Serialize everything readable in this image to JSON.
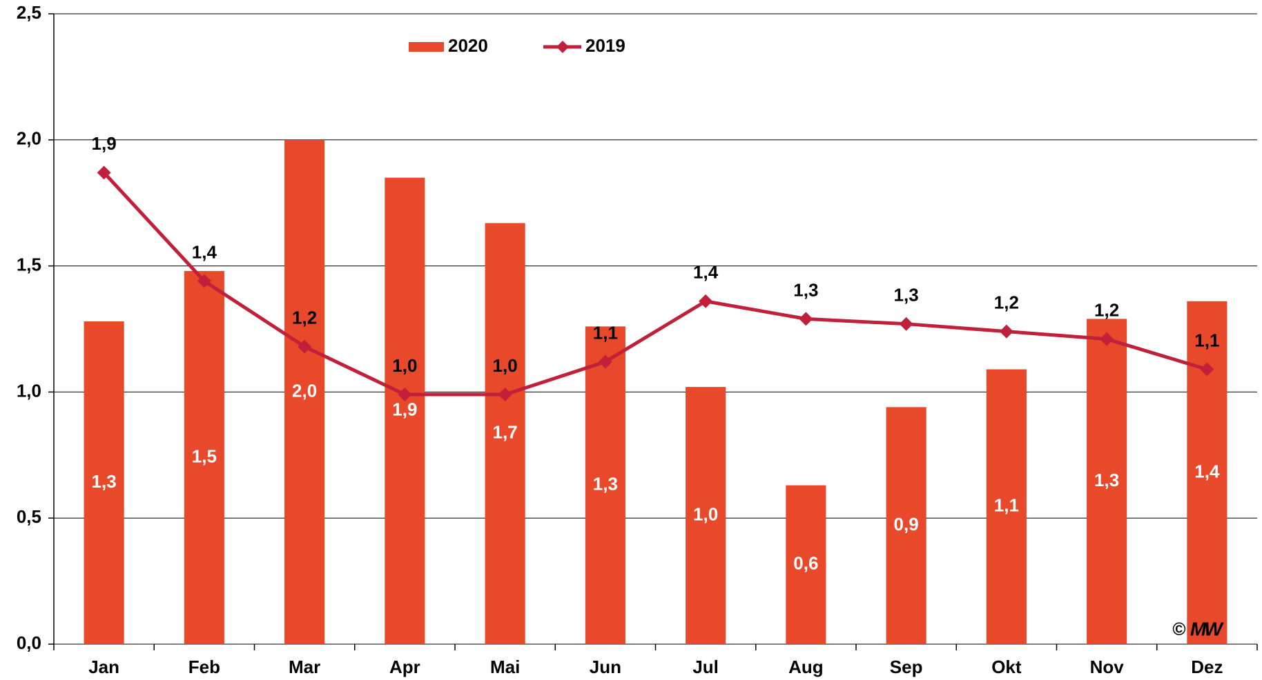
{
  "chart_data": {
    "type": "bar_line",
    "categories": [
      "Jan",
      "Feb",
      "Mar",
      "Apr",
      "Mai",
      "Jun",
      "Jul",
      "Aug",
      "Sep",
      "Okt",
      "Nov",
      "Dez"
    ],
    "series": [
      {
        "name": "2020",
        "type": "bar",
        "color": "#e8492a",
        "values": [
          1.28,
          1.48,
          2.0,
          1.85,
          1.67,
          1.26,
          1.02,
          0.63,
          0.94,
          1.09,
          1.29,
          1.36
        ],
        "value_labels": [
          "1,3",
          "1,5",
          "2,0",
          "1,9",
          "1,7",
          "1,3",
          "1,0",
          "0,6",
          "0,9",
          "1,1",
          "1,3",
          "1,4"
        ]
      },
      {
        "name": "2019",
        "type": "line",
        "color": "#c0203a",
        "values": [
          1.87,
          1.44,
          1.18,
          0.99,
          0.99,
          1.12,
          1.36,
          1.29,
          1.27,
          1.24,
          1.21,
          1.09
        ],
        "value_labels": [
          "1,9",
          "1,4",
          "1,2",
          "1,0",
          "1,0",
          "1,1",
          "1,4",
          "1,3",
          "1,3",
          "1,2",
          "1,2",
          "1,1"
        ]
      }
    ],
    "ylim": [
      0,
      2.5
    ],
    "yticks": [
      {
        "value": 0,
        "label": "0,0"
      },
      {
        "value": 0.5,
        "label": "0,5"
      },
      {
        "value": 1,
        "label": "1,0"
      },
      {
        "value": 1.5,
        "label": "1,5"
      },
      {
        "value": 2,
        "label": "2,0"
      },
      {
        "value": 2.5,
        "label": "2,5"
      }
    ],
    "grid": true,
    "legend": "top",
    "copyright": "©",
    "logo": "MW"
  }
}
